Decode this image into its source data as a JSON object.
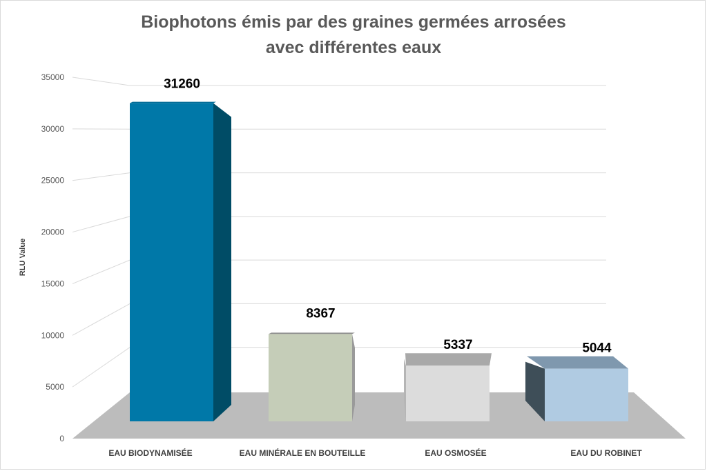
{
  "chart_data": {
    "type": "bar",
    "title": "Biophotons émis par des graines germées arrosées avec différentes eaux",
    "title_lines": [
      "Biophotons émis par des graines germées arrosées",
      "avec différentes eaux"
    ],
    "ylabel": "RLU Value",
    "xlabel": "",
    "ylim": [
      0,
      35000
    ],
    "yticks": [
      0,
      5000,
      10000,
      15000,
      20000,
      25000,
      30000,
      35000
    ],
    "categories": [
      "EAU BIODYNAMISÉE",
      "EAU MINÉRALE EN BOUTEILLE",
      "EAU OSMOSÉE",
      "EAU DU ROBINET"
    ],
    "values": [
      31260,
      8367,
      5337,
      5044
    ],
    "value_labels": [
      "31260",
      "8367",
      "5337",
      "5044"
    ],
    "grid": true,
    "legend": "none",
    "colors": {
      "bars": [
        "#0078A8",
        "#C5CDB8",
        "#DCDCDC",
        "#B0CBE2"
      ],
      "tops": [
        "#006A95",
        "#8E8E8E",
        "#A9A9A9",
        "#7F98AE"
      ],
      "sides": [
        "#004C66",
        "#9A9A9A",
        "#B5B5B5",
        "#3E4E58"
      ],
      "floor": "#BCBCBC",
      "grid": "#D9D9D9"
    }
  }
}
